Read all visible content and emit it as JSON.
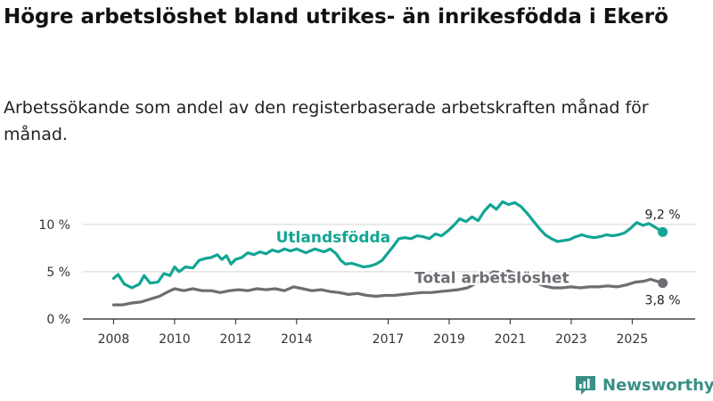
{
  "title": "Högre arbetslöshet bland utrikes- än inrikesfödda i Ekerö",
  "subtitle": "Arbetssökande som andel av den registerbaserade arbetskraften månad för månad.",
  "brand": {
    "name": "Newsworthy",
    "icon": "bar-chart-logo-icon"
  },
  "chart_data": {
    "type": "line",
    "title": "Högre arbetslöshet bland utrikes- än inrikesfödda i Ekerö",
    "xlabel": "",
    "ylabel": "",
    "ylim": [
      0,
      13
    ],
    "xlim": [
      2007.9,
      2026.1
    ],
    "grid": true,
    "y_ticks": [
      0,
      5,
      10
    ],
    "y_tick_labels": [
      "0 %",
      "5 %",
      "10 %"
    ],
    "x_ticks": [
      2008,
      2010,
      2012,
      2014,
      2017,
      2019,
      2021,
      2023,
      2025
    ],
    "x_tick_labels": [
      "2008",
      "2010",
      "2012",
      "2014",
      "2017",
      "2019",
      "2021",
      "2023",
      "2025"
    ],
    "series": [
      {
        "name": "Utlandsfödda",
        "color": "#12a594",
        "end_label": "9,2 %",
        "points": [
          [
            2008.0,
            4.3
          ],
          [
            2008.15,
            4.7
          ],
          [
            2008.35,
            3.7
          ],
          [
            2008.6,
            3.3
          ],
          [
            2008.85,
            3.7
          ],
          [
            2009.0,
            4.6
          ],
          [
            2009.2,
            3.8
          ],
          [
            2009.45,
            3.9
          ],
          [
            2009.65,
            4.8
          ],
          [
            2009.85,
            4.6
          ],
          [
            2010.0,
            5.5
          ],
          [
            2010.15,
            5.0
          ],
          [
            2010.35,
            5.5
          ],
          [
            2010.6,
            5.4
          ],
          [
            2010.8,
            6.2
          ],
          [
            2011.0,
            6.4
          ],
          [
            2011.2,
            6.5
          ],
          [
            2011.4,
            6.8
          ],
          [
            2011.55,
            6.3
          ],
          [
            2011.7,
            6.7
          ],
          [
            2011.85,
            5.8
          ],
          [
            2012.0,
            6.3
          ],
          [
            2012.2,
            6.5
          ],
          [
            2012.4,
            7.0
          ],
          [
            2012.6,
            6.8
          ],
          [
            2012.8,
            7.1
          ],
          [
            2013.0,
            6.9
          ],
          [
            2013.2,
            7.3
          ],
          [
            2013.4,
            7.1
          ],
          [
            2013.6,
            7.4
          ],
          [
            2013.8,
            7.2
          ],
          [
            2014.0,
            7.4
          ],
          [
            2014.3,
            7.0
          ],
          [
            2014.6,
            7.4
          ],
          [
            2014.9,
            7.1
          ],
          [
            2015.1,
            7.4
          ],
          [
            2015.3,
            6.9
          ],
          [
            2015.45,
            6.2
          ],
          [
            2015.6,
            5.8
          ],
          [
            2015.8,
            5.9
          ],
          [
            2016.0,
            5.7
          ],
          [
            2016.2,
            5.5
          ],
          [
            2016.4,
            5.6
          ],
          [
            2016.6,
            5.8
          ],
          [
            2016.8,
            6.2
          ],
          [
            2016.95,
            6.8
          ],
          [
            2017.15,
            7.6
          ],
          [
            2017.35,
            8.5
          ],
          [
            2017.55,
            8.6
          ],
          [
            2017.75,
            8.5
          ],
          [
            2017.95,
            8.8
          ],
          [
            2018.15,
            8.7
          ],
          [
            2018.35,
            8.5
          ],
          [
            2018.55,
            9.0
          ],
          [
            2018.75,
            8.8
          ],
          [
            2018.95,
            9.3
          ],
          [
            2019.15,
            9.9
          ],
          [
            2019.35,
            10.6
          ],
          [
            2019.55,
            10.3
          ],
          [
            2019.75,
            10.8
          ],
          [
            2019.95,
            10.4
          ],
          [
            2020.15,
            11.4
          ],
          [
            2020.35,
            12.1
          ],
          [
            2020.55,
            11.6
          ],
          [
            2020.75,
            12.4
          ],
          [
            2020.95,
            12.1
          ],
          [
            2021.15,
            12.3
          ],
          [
            2021.35,
            11.9
          ],
          [
            2021.55,
            11.2
          ],
          [
            2021.75,
            10.4
          ],
          [
            2021.95,
            9.6
          ],
          [
            2022.15,
            8.9
          ],
          [
            2022.35,
            8.5
          ],
          [
            2022.55,
            8.2
          ],
          [
            2022.75,
            8.3
          ],
          [
            2022.95,
            8.4
          ],
          [
            2023.15,
            8.7
          ],
          [
            2023.35,
            8.9
          ],
          [
            2023.55,
            8.7
          ],
          [
            2023.75,
            8.6
          ],
          [
            2023.95,
            8.7
          ],
          [
            2024.15,
            8.9
          ],
          [
            2024.35,
            8.8
          ],
          [
            2024.55,
            8.9
          ],
          [
            2024.75,
            9.1
          ],
          [
            2024.95,
            9.6
          ],
          [
            2025.15,
            10.2
          ],
          [
            2025.35,
            9.9
          ],
          [
            2025.55,
            10.1
          ],
          [
            2025.75,
            9.7
          ],
          [
            2026.0,
            9.2
          ]
        ]
      },
      {
        "name": "Total arbetslöshet",
        "color": "#6d6d73",
        "end_label": "3,8 %",
        "points": [
          [
            2008.0,
            1.5
          ],
          [
            2008.3,
            1.5
          ],
          [
            2008.6,
            1.7
          ],
          [
            2008.9,
            1.8
          ],
          [
            2009.2,
            2.1
          ],
          [
            2009.5,
            2.4
          ],
          [
            2009.8,
            2.9
          ],
          [
            2010.0,
            3.2
          ],
          [
            2010.3,
            3.0
          ],
          [
            2010.6,
            3.2
          ],
          [
            2010.9,
            3.0
          ],
          [
            2011.2,
            3.0
          ],
          [
            2011.5,
            2.8
          ],
          [
            2011.8,
            3.0
          ],
          [
            2012.1,
            3.1
          ],
          [
            2012.4,
            3.0
          ],
          [
            2012.7,
            3.2
          ],
          [
            2013.0,
            3.1
          ],
          [
            2013.3,
            3.2
          ],
          [
            2013.6,
            3.0
          ],
          [
            2013.9,
            3.4
          ],
          [
            2014.2,
            3.2
          ],
          [
            2014.5,
            3.0
          ],
          [
            2014.8,
            3.1
          ],
          [
            2015.1,
            2.9
          ],
          [
            2015.4,
            2.8
          ],
          [
            2015.7,
            2.6
          ],
          [
            2016.0,
            2.7
          ],
          [
            2016.3,
            2.5
          ],
          [
            2016.6,
            2.4
          ],
          [
            2016.9,
            2.5
          ],
          [
            2017.2,
            2.5
          ],
          [
            2017.5,
            2.6
          ],
          [
            2017.8,
            2.7
          ],
          [
            2018.1,
            2.8
          ],
          [
            2018.4,
            2.8
          ],
          [
            2018.7,
            2.9
          ],
          [
            2019.0,
            3.0
          ],
          [
            2019.3,
            3.1
          ],
          [
            2019.6,
            3.3
          ],
          [
            2019.9,
            3.8
          ],
          [
            2020.2,
            4.4
          ],
          [
            2020.45,
            5.0
          ],
          [
            2020.7,
            4.9
          ],
          [
            2020.95,
            5.1
          ],
          [
            2021.2,
            4.7
          ],
          [
            2021.5,
            4.3
          ],
          [
            2021.8,
            3.9
          ],
          [
            2022.1,
            3.5
          ],
          [
            2022.4,
            3.3
          ],
          [
            2022.7,
            3.3
          ],
          [
            2023.0,
            3.4
          ],
          [
            2023.3,
            3.3
          ],
          [
            2023.6,
            3.4
          ],
          [
            2023.9,
            3.4
          ],
          [
            2024.2,
            3.5
          ],
          [
            2024.5,
            3.4
          ],
          [
            2024.8,
            3.6
          ],
          [
            2025.1,
            3.9
          ],
          [
            2025.4,
            4.0
          ],
          [
            2025.6,
            4.2
          ],
          [
            2025.8,
            4.0
          ],
          [
            2026.0,
            3.8
          ]
        ]
      }
    ],
    "annotations": [
      {
        "text": "Utlandsfödda",
        "series": "Utlandsfödda",
        "x": 2015.2,
        "y": 8.1
      },
      {
        "text": "Total arbetslöshet",
        "series": "Total arbetslöshet",
        "x": 2020.4,
        "y": 3.8
      }
    ]
  }
}
